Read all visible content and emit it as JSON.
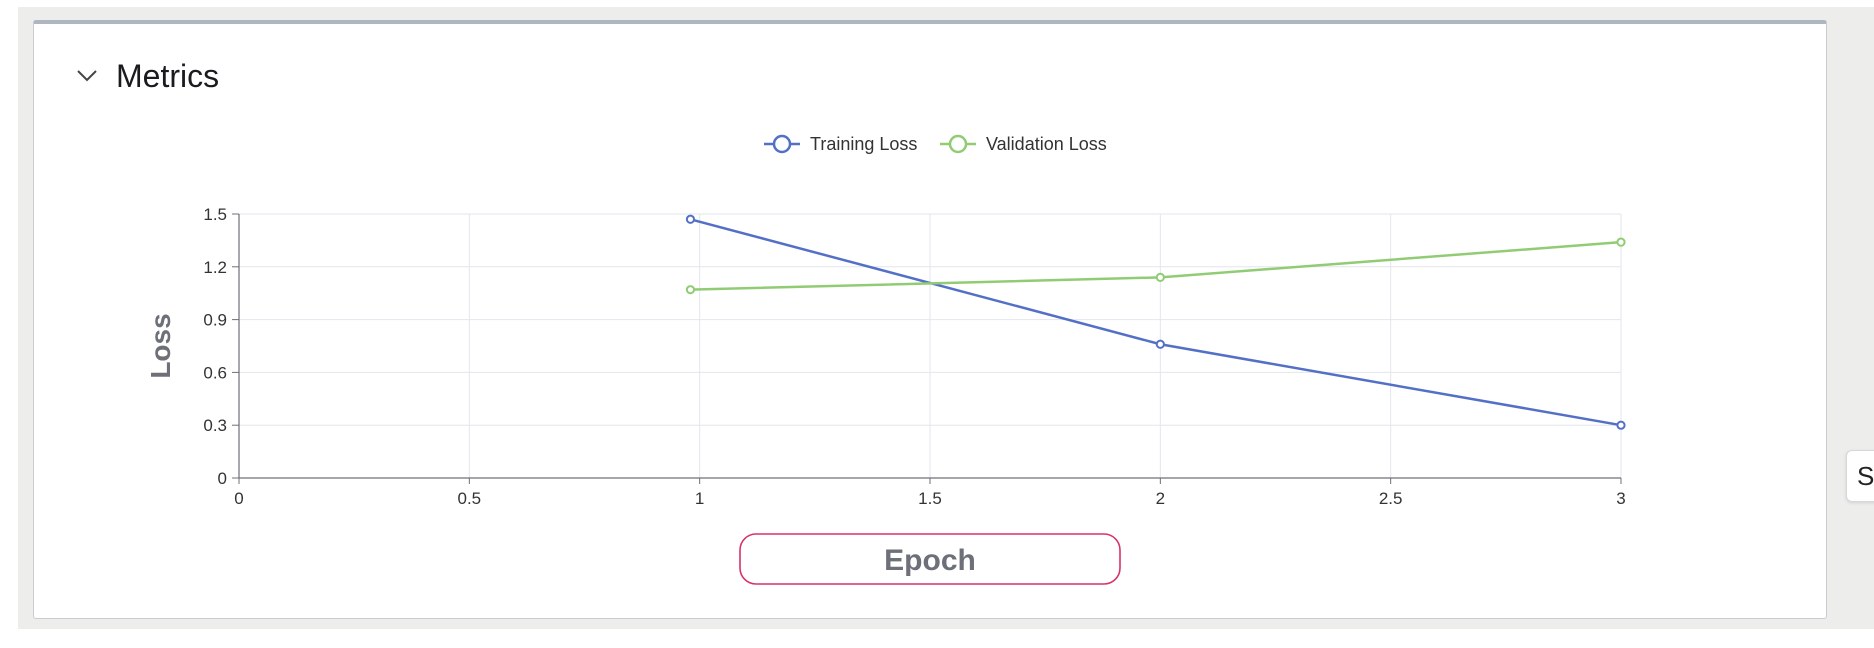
{
  "panel": {
    "title": "Metrics",
    "collapse_icon": "chevron-down-icon"
  },
  "side_tab": {
    "label": "S"
  },
  "colors": {
    "training": "#5470c6",
    "validation": "#91cc75",
    "epoch_label_border": "#d6336c",
    "grid": "#e3e6ec",
    "axis": "#6e7079"
  },
  "chart_data": {
    "type": "line",
    "xlabel": "Epoch",
    "ylabel": "Loss",
    "xlim": [
      0,
      3
    ],
    "ylim": [
      0,
      1.5
    ],
    "x_ticks": [
      "0",
      "0.5",
      "1",
      "1.5",
      "2",
      "2.5",
      "3"
    ],
    "y_ticks": [
      "0",
      "0.3",
      "0.6",
      "0.9",
      "1.2",
      "1.5"
    ],
    "grid": true,
    "legend_position": "top-center",
    "series": [
      {
        "name": "Training Loss",
        "x": [
          0.98,
          2,
          3
        ],
        "y": [
          1.47,
          0.76,
          0.3
        ]
      },
      {
        "name": "Validation Loss",
        "x": [
          0.98,
          2,
          3
        ],
        "y": [
          1.07,
          1.14,
          1.34
        ]
      }
    ]
  }
}
